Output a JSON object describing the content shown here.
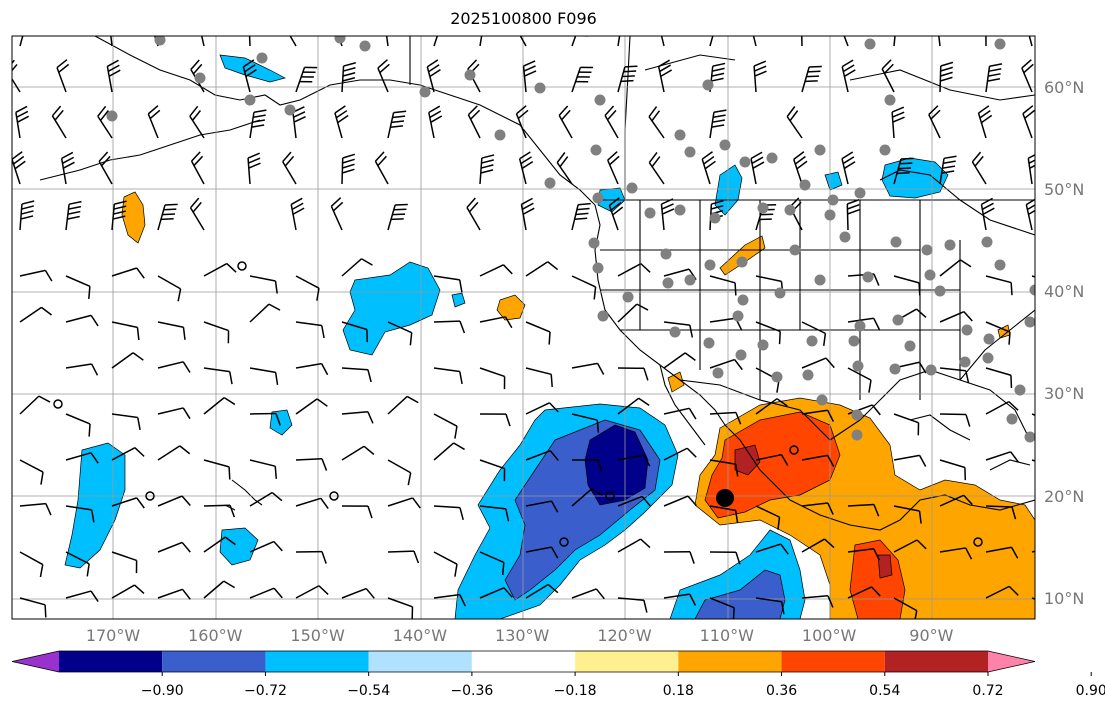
{
  "title": "2025100800 F096",
  "lat_labels": [
    {
      "lat": 60,
      "text": "60°N"
    },
    {
      "lat": 50,
      "text": "50°N"
    },
    {
      "lat": 40,
      "text": "40°N"
    },
    {
      "lat": 30,
      "text": "30°N"
    },
    {
      "lat": 20,
      "text": "20°N"
    },
    {
      "lat": 10,
      "text": "10°N"
    }
  ],
  "lon_labels": [
    {
      "lon": -170,
      "text": "170°W"
    },
    {
      "lon": -160,
      "text": "160°W"
    },
    {
      "lon": -150,
      "text": "150°W"
    },
    {
      "lon": -140,
      "text": "140°W"
    },
    {
      "lon": -130,
      "text": "130°W"
    },
    {
      "lon": -120,
      "text": "120°W"
    },
    {
      "lon": -110,
      "text": "110°W"
    },
    {
      "lon": -100,
      "text": "100°W"
    },
    {
      "lon": -90,
      "text": "90°W"
    }
  ],
  "colorbar": {
    "colors": [
      "#9932cc",
      "#00008b",
      "#3a5fcd",
      "#00bfff",
      "#b0e2ff",
      "#ffffff",
      "#fff08f",
      "#ffa500",
      "#ff4500",
      "#b22222",
      "#ff82ab"
    ],
    "tick_labels": [
      "−0.90",
      "−0.72",
      "−0.54",
      "−0.36",
      "−0.18",
      "0.18",
      "0.36",
      "0.54",
      "0.72",
      "0.90"
    ]
  },
  "fill_colors": {
    "light_blue": "#00bfff",
    "mid_blue": "#3a5fcd",
    "dark_blue": "#00008b",
    "orange": "#ffa500",
    "red_orange": "#ff4500",
    "dark_red": "#b22222"
  },
  "station_color": "#808080"
}
